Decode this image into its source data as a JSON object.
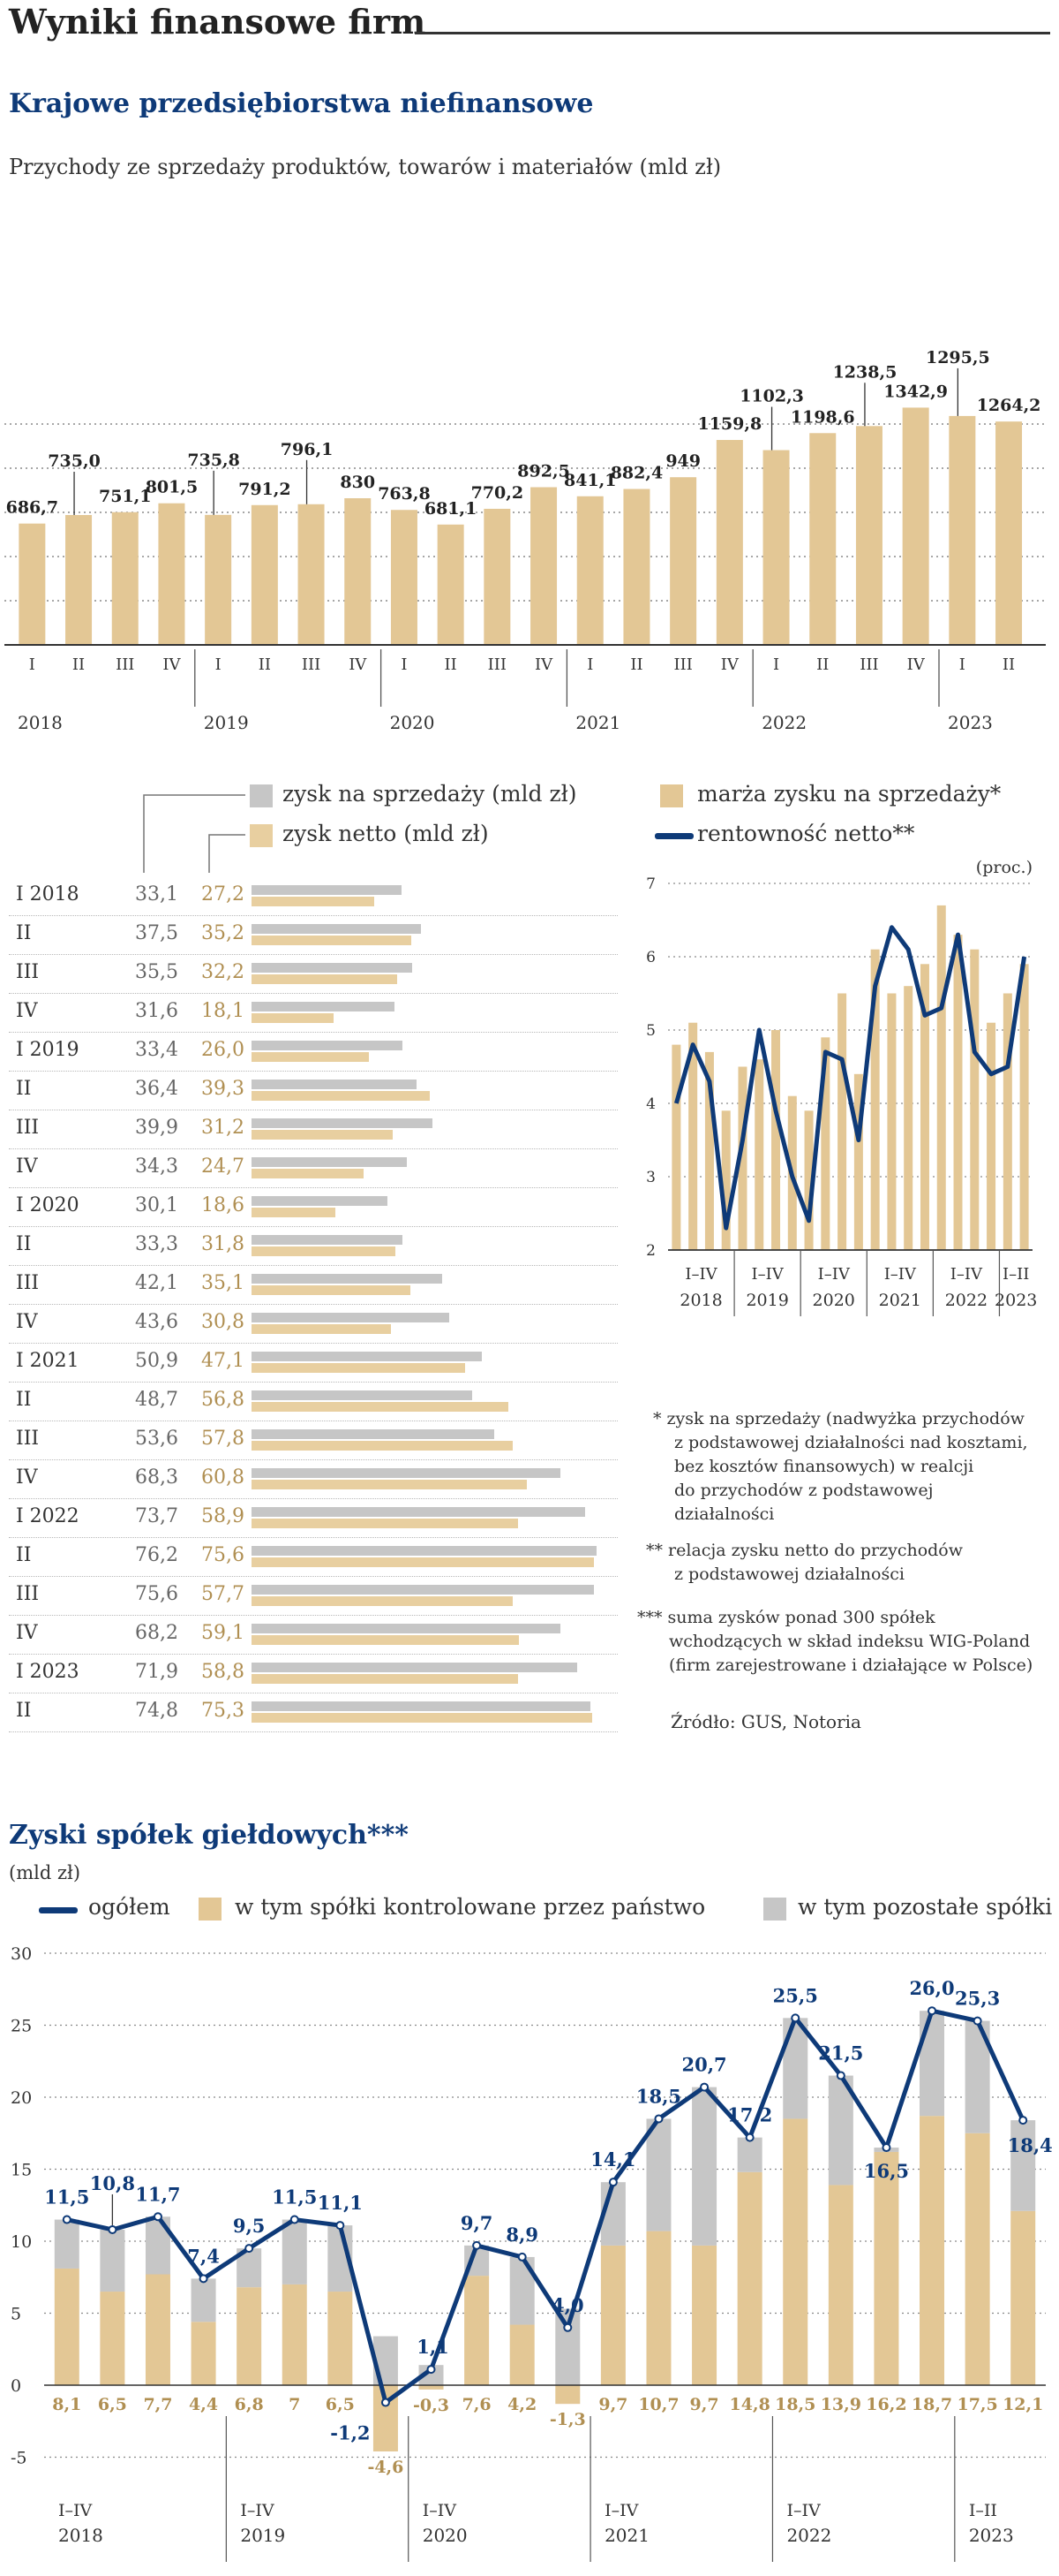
{
  "header": {
    "title": "Wyniki finansowe firm",
    "section1_title": "Krajowe przedsiębiorstwa niefinansowe",
    "section2_title": "Zyski spółek giełdowych***"
  },
  "colors": {
    "navy": "#0e3a78",
    "tan": "#e3c795",
    "gray": "#c6c6c6",
    "tan_text": "#b08f52"
  },
  "chart_data": [
    {
      "type": "bar",
      "title": "Przychody ze sprzedaży produktów, towarów i materiałów (mld zł)",
      "categories": [
        "I",
        "II",
        "III",
        "IV",
        "I",
        "II",
        "III",
        "IV",
        "I",
        "II",
        "III",
        "IV",
        "I",
        "II",
        "III",
        "IV",
        "I",
        "II",
        "III",
        "IV",
        "I",
        "II"
      ],
      "years": [
        "2018",
        "2019",
        "2020",
        "2021",
        "2022",
        "2023"
      ],
      "values": [
        686.7,
        735.0,
        751.1,
        801.5,
        735.8,
        791.2,
        796.1,
        830,
        763.8,
        681.1,
        770.2,
        892.5,
        841.1,
        882.4,
        949,
        1159.8,
        1102.3,
        1198.6,
        1238.5,
        1342.9,
        1295.5,
        1264.2
      ],
      "labels": [
        "686,7",
        "735,0",
        "751,1",
        "801,5",
        "735,8",
        "791,2",
        "796,1",
        "830",
        "763,8",
        "681,1",
        "770,2",
        "892,5",
        "841,1",
        "882,4",
        "949",
        "1159,8",
        "1102,3",
        "1198,6",
        "1238,5",
        "1342,9",
        "1295,5",
        "1264,2"
      ],
      "ylim": [
        0,
        1500
      ],
      "gridlines": [
        250,
        500,
        750,
        1000,
        1250
      ]
    },
    {
      "type": "bar",
      "orientation": "horizontal",
      "legend": [
        "zysk na sprzedaży (mld zł)",
        "zysk netto (mld zł)"
      ],
      "rows": [
        {
          "label": "I 2018",
          "a": 33.1,
          "b": 27.2,
          "a_txt": "33,1",
          "b_txt": "27,2"
        },
        {
          "label": "II",
          "a": 37.5,
          "b": 35.2,
          "a_txt": "37,5",
          "b_txt": "35,2"
        },
        {
          "label": "III",
          "a": 35.5,
          "b": 32.2,
          "a_txt": "35,5",
          "b_txt": "32,2"
        },
        {
          "label": "IV",
          "a": 31.6,
          "b": 18.1,
          "a_txt": "31,6",
          "b_txt": "18,1"
        },
        {
          "label": "I 2019",
          "a": 33.4,
          "b": 26.0,
          "a_txt": "33,4",
          "b_txt": "26,0"
        },
        {
          "label": "II",
          "a": 36.4,
          "b": 39.3,
          "a_txt": "36,4",
          "b_txt": "39,3"
        },
        {
          "label": "III",
          "a": 39.9,
          "b": 31.2,
          "a_txt": "39,9",
          "b_txt": "31,2"
        },
        {
          "label": "IV",
          "a": 34.3,
          "b": 24.7,
          "a_txt": "34,3",
          "b_txt": "24,7"
        },
        {
          "label": "I 2020",
          "a": 30.1,
          "b": 18.6,
          "a_txt": "30,1",
          "b_txt": "18,6"
        },
        {
          "label": "II",
          "a": 33.3,
          "b": 31.8,
          "a_txt": "33,3",
          "b_txt": "31,8"
        },
        {
          "label": "III",
          "a": 42.1,
          "b": 35.1,
          "a_txt": "42,1",
          "b_txt": "35,1"
        },
        {
          "label": "IV",
          "a": 43.6,
          "b": 30.8,
          "a_txt": "43,6",
          "b_txt": "30,8"
        },
        {
          "label": "I 2021",
          "a": 50.9,
          "b": 47.1,
          "a_txt": "50,9",
          "b_txt": "47,1"
        },
        {
          "label": "II",
          "a": 48.7,
          "b": 56.8,
          "a_txt": "48,7",
          "b_txt": "56,8"
        },
        {
          "label": "III",
          "a": 53.6,
          "b": 57.8,
          "a_txt": "53,6",
          "b_txt": "57,8"
        },
        {
          "label": "IV",
          "a": 68.3,
          "b": 60.8,
          "a_txt": "68,3",
          "b_txt": "60,8"
        },
        {
          "label": "I 2022",
          "a": 73.7,
          "b": 58.9,
          "a_txt": "73,7",
          "b_txt": "58,9"
        },
        {
          "label": "II",
          "a": 76.2,
          "b": 75.6,
          "a_txt": "76,2",
          "b_txt": "75,6"
        },
        {
          "label": "III",
          "a": 75.6,
          "b": 57.7,
          "a_txt": "75,6",
          "b_txt": "57,7"
        },
        {
          "label": "IV",
          "a": 68.2,
          "b": 59.1,
          "a_txt": "68,2",
          "b_txt": "59,1"
        },
        {
          "label": "I 2023",
          "a": 71.9,
          "b": 58.8,
          "a_txt": "71,9",
          "b_txt": "58,8"
        },
        {
          "label": "II",
          "a": 74.8,
          "b": 75.3,
          "a_txt": "74,8",
          "b_txt": "75,3"
        }
      ],
      "xmax": 78
    },
    {
      "type": "bar+line",
      "legend": [
        "marża zysku na sprzedaży*",
        "rentowność netto**"
      ],
      "unit": "(proc.)",
      "ylim": [
        2,
        7
      ],
      "yticks": [
        "7",
        "6",
        "5",
        "4",
        "3",
        "2"
      ],
      "bar_values": [
        4.8,
        5.1,
        4.7,
        3.9,
        4.5,
        4.6,
        5.0,
        4.1,
        3.9,
        4.9,
        5.5,
        4.4,
        6.1,
        5.5,
        5.6,
        5.9,
        6.7,
        6.3,
        6.1,
        5.1,
        5.5,
        5.9
      ],
      "line_values": [
        4.0,
        4.8,
        4.3,
        2.3,
        3.5,
        5.0,
        3.9,
        3.0,
        2.4,
        4.7,
        4.6,
        3.5,
        5.6,
        6.4,
        6.1,
        5.2,
        5.3,
        6.3,
        4.7,
        4.4,
        4.5,
        6.0
      ],
      "period_labels": [
        "I–IV",
        "I–IV",
        "I–IV",
        "I–IV",
        "I–IV",
        "I–II"
      ],
      "years": [
        "2018",
        "2019",
        "2020",
        "2021",
        "2022",
        "2023"
      ]
    },
    {
      "type": "bar+line",
      "title": "Zyski spółek giełdowych***",
      "unit": "(mld zł)",
      "legend": [
        "ogółem",
        "w tym spółki kontrolowane przez państwo",
        "w tym pozostałe spółki"
      ],
      "ylim": [
        -5,
        30
      ],
      "yticks": [
        "30",
        "25",
        "20",
        "15",
        "10",
        "5",
        "0",
        "-5"
      ],
      "total": [
        11.5,
        10.8,
        11.7,
        7.4,
        9.5,
        11.5,
        11.1,
        -1.2,
        1.1,
        9.7,
        8.9,
        4.0,
        14.1,
        18.5,
        20.7,
        17.2,
        25.5,
        21.5,
        16.5,
        26.0,
        25.3,
        18.4
      ],
      "total_labels": [
        "11,5",
        "10,8",
        "11,7",
        "7,4",
        "9,5",
        "11,5",
        "11,1",
        "-1,2",
        "1,1",
        "9,7",
        "8,9",
        "4,0",
        "14,1",
        "18,5",
        "20,7",
        "17,2",
        "25,5",
        "21,5",
        "16,5",
        "26,0",
        "25,3",
        "18,4"
      ],
      "state": [
        8.1,
        6.5,
        7.7,
        4.4,
        6.8,
        7,
        6.5,
        -4.6,
        -0.3,
        7.6,
        4.2,
        -1.3,
        9.7,
        10.7,
        9.7,
        14.8,
        18.5,
        13.9,
        16.2,
        18.7,
        17.5,
        12.1
      ],
      "state_labels": [
        "8,1",
        "6,5",
        "7,7",
        "4,4",
        "6,8",
        "7",
        "6,5",
        "-4,6",
        "-0,3",
        "7,6",
        "4,2",
        "-1,3",
        "9,7",
        "10,7",
        "9,7",
        "14,8",
        "18,5",
        "13,9",
        "16,2",
        "18,7",
        "17,5",
        "12,1"
      ],
      "period_labels": [
        "I–IV",
        "I–IV",
        "I–IV",
        "I–IV",
        "I–IV",
        "I–II"
      ],
      "years": [
        "2018",
        "2019",
        "2020",
        "2021",
        "2022",
        "2023"
      ]
    }
  ],
  "footnotes": {
    "f1": [
      "*  zysk na sprzedaży (nadwyżka przychodów",
      "z podstawowej działalności nad kosztami,",
      "bez kosztów finansowych) w realcji",
      "do przychodów z podstawowej",
      "działalności"
    ],
    "f2": [
      "**  relacja zysku netto do przychodów",
      "z podstawowej działalności"
    ],
    "f3": [
      "***  suma zysków ponad 300 spółek",
      "wchodzących w skład indeksu WIG-Poland",
      "(firm zarejestrowane i działające w Polsce)"
    ],
    "source": "Źródło: GUS, Notoria"
  }
}
